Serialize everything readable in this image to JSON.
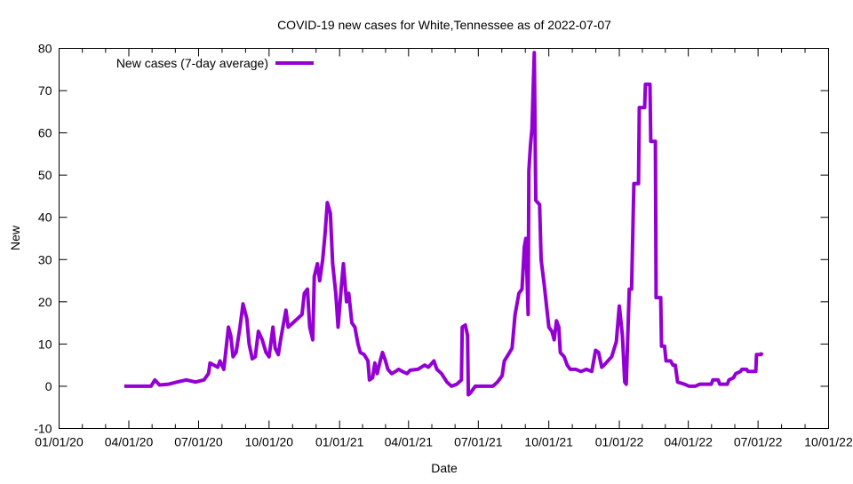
{
  "chart_data": {
    "type": "line",
    "title": "COVID-19 new cases for White,Tennessee as of 2022-07-07",
    "xlabel": "Date",
    "ylabel": "New",
    "x_unit": "days since 01/01/20",
    "xlim": [
      0,
      1004
    ],
    "ylim": [
      -10,
      80
    ],
    "yticks": [
      -10,
      0,
      10,
      20,
      30,
      40,
      50,
      60,
      70,
      80
    ],
    "xticks": [
      {
        "day": 0,
        "label": "01/01/20"
      },
      {
        "day": 91,
        "label": "04/01/20"
      },
      {
        "day": 182,
        "label": "07/01/20"
      },
      {
        "day": 274,
        "label": "10/01/20"
      },
      {
        "day": 366,
        "label": "01/01/21"
      },
      {
        "day": 456,
        "label": "04/01/21"
      },
      {
        "day": 547,
        "label": "07/01/21"
      },
      {
        "day": 639,
        "label": "10/01/21"
      },
      {
        "day": 731,
        "label": "01/01/22"
      },
      {
        "day": 821,
        "label": "04/01/22"
      },
      {
        "day": 912,
        "label": "07/01/22"
      },
      {
        "day": 1004,
        "label": "10/01/22"
      }
    ],
    "grid": false,
    "legend_position": "top-left",
    "series": [
      {
        "name": "New cases (7-day average)",
        "color": "#9400d3",
        "x": [
          85,
          120,
          125,
          131,
          143,
          154,
          166,
          178,
          189,
          195,
          197,
          207,
          210,
          215,
          221,
          224,
          227,
          231,
          236,
          240,
          245,
          248,
          252,
          256,
          260,
          265,
          270,
          274,
          279,
          282,
          286,
          289,
          296,
          299,
          305,
          311,
          317,
          320,
          324,
          327,
          331,
          333,
          337,
          340,
          344,
          347,
          350,
          354,
          357,
          361,
          364,
          368,
          371,
          375,
          378,
          382,
          386,
          390,
          393,
          398,
          403,
          405,
          409,
          412,
          415,
          419,
          422,
          426,
          429,
          434,
          439,
          443,
          448,
          454,
          458,
          468,
          477,
          482,
          489,
          493,
          499,
          506,
          512,
          519,
          525,
          526,
          530,
          533,
          534,
          537,
          543,
          555,
          566,
          572,
          578,
          581,
          586,
          591,
          595,
          600,
          604,
          607,
          609,
          612,
          613,
          615,
          617,
          620,
          622,
          627,
          629,
          633,
          636,
          639,
          643,
          646,
          649,
          652,
          654,
          659,
          663,
          667,
          674,
          681,
          688,
          695,
          700,
          704,
          708,
          711,
          716,
          721,
          727,
          731,
          735,
          738,
          740,
          744,
          747,
          750,
          756,
          757,
          764,
          765,
          771,
          772,
          778,
          779,
          785,
          786,
          790,
          792,
          798,
          801,
          804,
          807,
          816,
          822,
          830,
          836,
          845,
          851,
          853,
          860,
          862,
          872,
          874,
          880,
          883,
          889,
          891,
          897,
          899,
          909,
          910,
          916,
          917
        ],
        "y": [
          0,
          0,
          1.5,
          0.3,
          0.5,
          1,
          1.5,
          1,
          1.5,
          3,
          5.5,
          4.5,
          6,
          4,
          14,
          12,
          7,
          8,
          14,
          19.5,
          16,
          10,
          6.5,
          7,
          13,
          11,
          8,
          7,
          14,
          9,
          7.5,
          11,
          18,
          14,
          15,
          16,
          17,
          22,
          23,
          14,
          11,
          26,
          29,
          25,
          30,
          36,
          43.5,
          41,
          29,
          22,
          14,
          23,
          29,
          20,
          22,
          15,
          14,
          10,
          8,
          7.5,
          6,
          1.5,
          2,
          5.5,
          3,
          6,
          8,
          6,
          4,
          3,
          3.5,
          4,
          3.5,
          3,
          3.8,
          4,
          5,
          4.5,
          6,
          4,
          3,
          1,
          0,
          0.5,
          1.5,
          14,
          14.5,
          12,
          -2,
          -1.5,
          0,
          0,
          0,
          1,
          2.5,
          6,
          7.5,
          9,
          17,
          22,
          23,
          33,
          35,
          17,
          51,
          57,
          61,
          79,
          44,
          43,
          30,
          24,
          19,
          14,
          13,
          11,
          15.5,
          14,
          8,
          7,
          5,
          4,
          4,
          3.5,
          4,
          3.5,
          8.5,
          8,
          4.5,
          5,
          6,
          7,
          10.5,
          19,
          12,
          1,
          0.5,
          23,
          23,
          48,
          48,
          66,
          66,
          71.5,
          71.5,
          58,
          58,
          21,
          21,
          9.5,
          9.5,
          6,
          6,
          5,
          5,
          1,
          0.5,
          0,
          0,
          0.5,
          0.5,
          0.5,
          1.5,
          1.5,
          0.5,
          0.5,
          1.5,
          2,
          3,
          3.5,
          4,
          4,
          3.5,
          3.5,
          7.5,
          7.5,
          8
        ]
      }
    ]
  }
}
